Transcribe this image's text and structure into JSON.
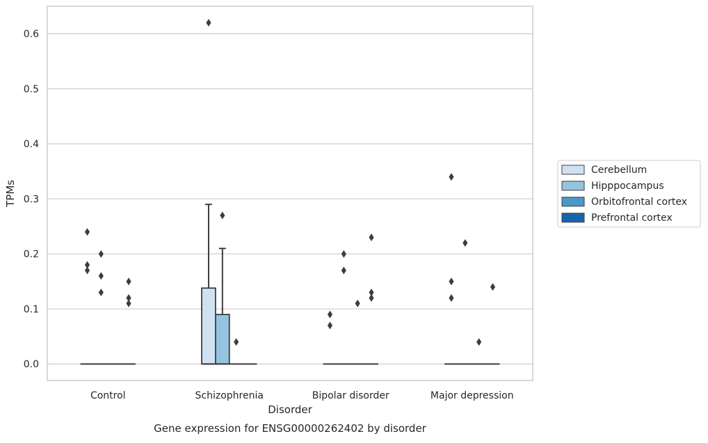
{
  "chart_data": {
    "type": "box",
    "caption": "Gene expression for ENSG00000262402 by disorder",
    "xlabel": "Disorder",
    "ylabel": "TPMs",
    "ylim": [
      -0.03,
      0.65
    ],
    "yticks": [
      0.0,
      0.1,
      0.2,
      0.3,
      0.4,
      0.5,
      0.6
    ],
    "ytick_labels": [
      "0.0",
      "0.1",
      "0.2",
      "0.3",
      "0.4",
      "0.5",
      "0.6"
    ],
    "grid": "horizontal",
    "legend_position": "right",
    "categories": [
      "Control",
      "Schizophrenia",
      "Bipolar disorder",
      "Major depression"
    ],
    "series": [
      {
        "name": "Cerebellum",
        "color": "#d0e1f2",
        "boxes": [
          {
            "q1": 0,
            "median": 0,
            "q3": 0,
            "whisker_low": 0,
            "whisker_high": 0,
            "outliers": [
              0.24,
              0.18,
              0.17
            ]
          },
          {
            "q1": 0,
            "median": 0,
            "q3": 0.138,
            "whisker_low": 0,
            "whisker_high": 0.29,
            "outliers": [
              0.62
            ]
          },
          {
            "q1": 0,
            "median": 0,
            "q3": 0,
            "whisker_low": 0,
            "whisker_high": 0,
            "outliers": [
              0.09,
              0.07
            ]
          },
          {
            "q1": 0,
            "median": 0,
            "q3": 0,
            "whisker_low": 0,
            "whisker_high": 0,
            "outliers": [
              0.34,
              0.15,
              0.12
            ]
          }
        ]
      },
      {
        "name": "Hipppocampus",
        "color": "#94c4df",
        "boxes": [
          {
            "q1": 0,
            "median": 0,
            "q3": 0,
            "whisker_low": 0,
            "whisker_high": 0,
            "outliers": [
              0.2,
              0.16,
              0.13
            ]
          },
          {
            "q1": 0,
            "median": 0,
            "q3": 0.09,
            "whisker_low": 0,
            "whisker_high": 0.21,
            "outliers": [
              0.27
            ]
          },
          {
            "q1": 0,
            "median": 0,
            "q3": 0,
            "whisker_low": 0,
            "whisker_high": 0,
            "outliers": [
              0.2,
              0.17
            ]
          },
          {
            "q1": 0,
            "median": 0,
            "q3": 0,
            "whisker_low": 0,
            "whisker_high": 0,
            "outliers": [
              0.22
            ]
          }
        ]
      },
      {
        "name": "Orbitofrontal cortex",
        "color": "#4a98c9",
        "boxes": [
          {
            "q1": 0,
            "median": 0,
            "q3": 0,
            "whisker_low": 0,
            "whisker_high": 0,
            "outliers": []
          },
          {
            "q1": 0,
            "median": 0,
            "q3": 0,
            "whisker_low": 0,
            "whisker_high": 0,
            "outliers": [
              0.04
            ]
          },
          {
            "q1": 0,
            "median": 0,
            "q3": 0,
            "whisker_low": 0,
            "whisker_high": 0,
            "outliers": [
              0.11
            ]
          },
          {
            "q1": 0,
            "median": 0,
            "q3": 0,
            "whisker_low": 0,
            "whisker_high": 0,
            "outliers": [
              0.04
            ]
          }
        ]
      },
      {
        "name": "Prefrontal cortex",
        "color": "#1764ab",
        "boxes": [
          {
            "q1": 0,
            "median": 0,
            "q3": 0,
            "whisker_low": 0,
            "whisker_high": 0,
            "outliers": [
              0.15,
              0.12,
              0.11
            ]
          },
          {
            "q1": 0,
            "median": 0,
            "q3": 0,
            "whisker_low": 0,
            "whisker_high": 0,
            "outliers": []
          },
          {
            "q1": 0,
            "median": 0,
            "q3": 0,
            "whisker_low": 0,
            "whisker_high": 0,
            "outliers": [
              0.23,
              0.13,
              0.12
            ]
          },
          {
            "q1": 0,
            "median": 0,
            "q3": 0,
            "whisker_low": 0,
            "whisker_high": 0,
            "outliers": [
              0.14
            ]
          }
        ]
      }
    ]
  }
}
